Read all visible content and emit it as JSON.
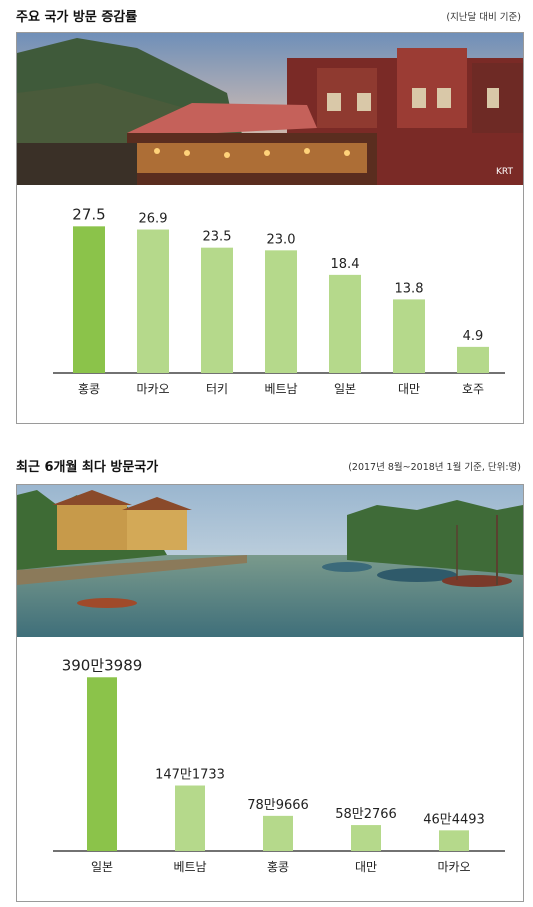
{
  "section1": {
    "title": "주요 국가 방문 증감률",
    "note": "(지난달 대비 기준)",
    "photo_credit": "KRT"
  },
  "section2": {
    "title": "최근 6개월 최다 방문국가",
    "note": "(2017년 8월~2018년 1월 기준, 단위:명)"
  },
  "colors": {
    "highlight": "#8bc34a",
    "bar": "#b5d98b",
    "axis": "#444444",
    "border": "#9a9a9a"
  },
  "chart_data": [
    {
      "type": "bar",
      "title": "주요 국가 방문 증감률",
      "categories": [
        "홍콩",
        "마카오",
        "터키",
        "베트남",
        "일본",
        "대만",
        "호주"
      ],
      "values": [
        27.5,
        26.9,
        23.5,
        23.0,
        18.4,
        13.8,
        4.9
      ],
      "value_labels": [
        "27.5",
        "26.9",
        "23.5",
        "23.0",
        "18.4",
        "13.8",
        "4.9"
      ],
      "highlight_index": 0,
      "xlabel": "",
      "ylabel": "",
      "ylim": [
        0,
        30
      ]
    },
    {
      "type": "bar",
      "title": "최근 6개월 최다 방문국가",
      "categories": [
        "일본",
        "베트남",
        "홍콩",
        "대만",
        "마카오"
      ],
      "values": [
        3903989,
        1471733,
        789666,
        582766,
        464493
      ],
      "value_labels": [
        "390만3989",
        "147만1733",
        "78만9666",
        "58만2766",
        "46만4493"
      ],
      "highlight_index": 0,
      "xlabel": "",
      "ylabel": "",
      "ylim": [
        0,
        4000000
      ]
    }
  ]
}
